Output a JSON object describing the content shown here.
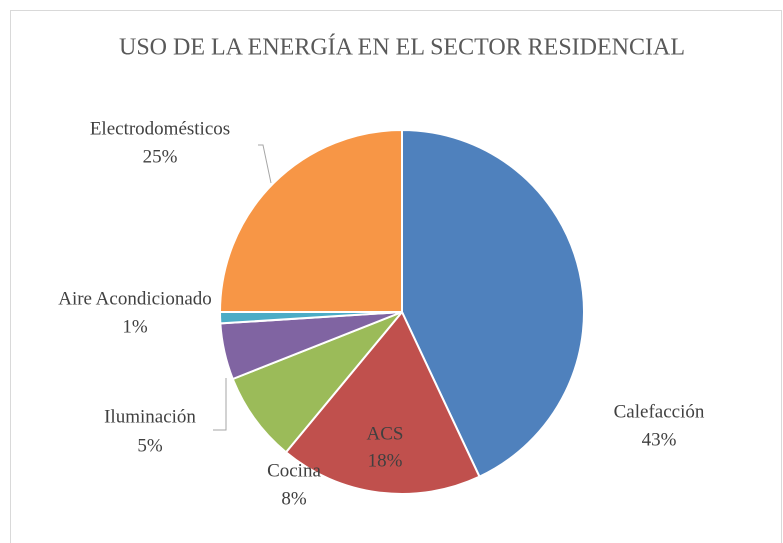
{
  "chart_data": {
    "type": "pie",
    "title": "USO DE LA ENERGÍA EN EL SECTOR RESIDENCIAL",
    "categories": [
      "Calefacción",
      "ACS",
      "Cocina",
      "Iluminación",
      "Aire Acondicionado",
      "Electrodomésticos"
    ],
    "values": [
      43,
      18,
      8,
      5,
      1,
      25
    ],
    "value_labels": [
      "43%",
      "18%",
      "8%",
      "5%",
      "1%",
      "25%"
    ],
    "colors": [
      "#4f81bd",
      "#c0504d",
      "#9bbb59",
      "#8064a2",
      "#4bacc6",
      "#f79646"
    ]
  }
}
